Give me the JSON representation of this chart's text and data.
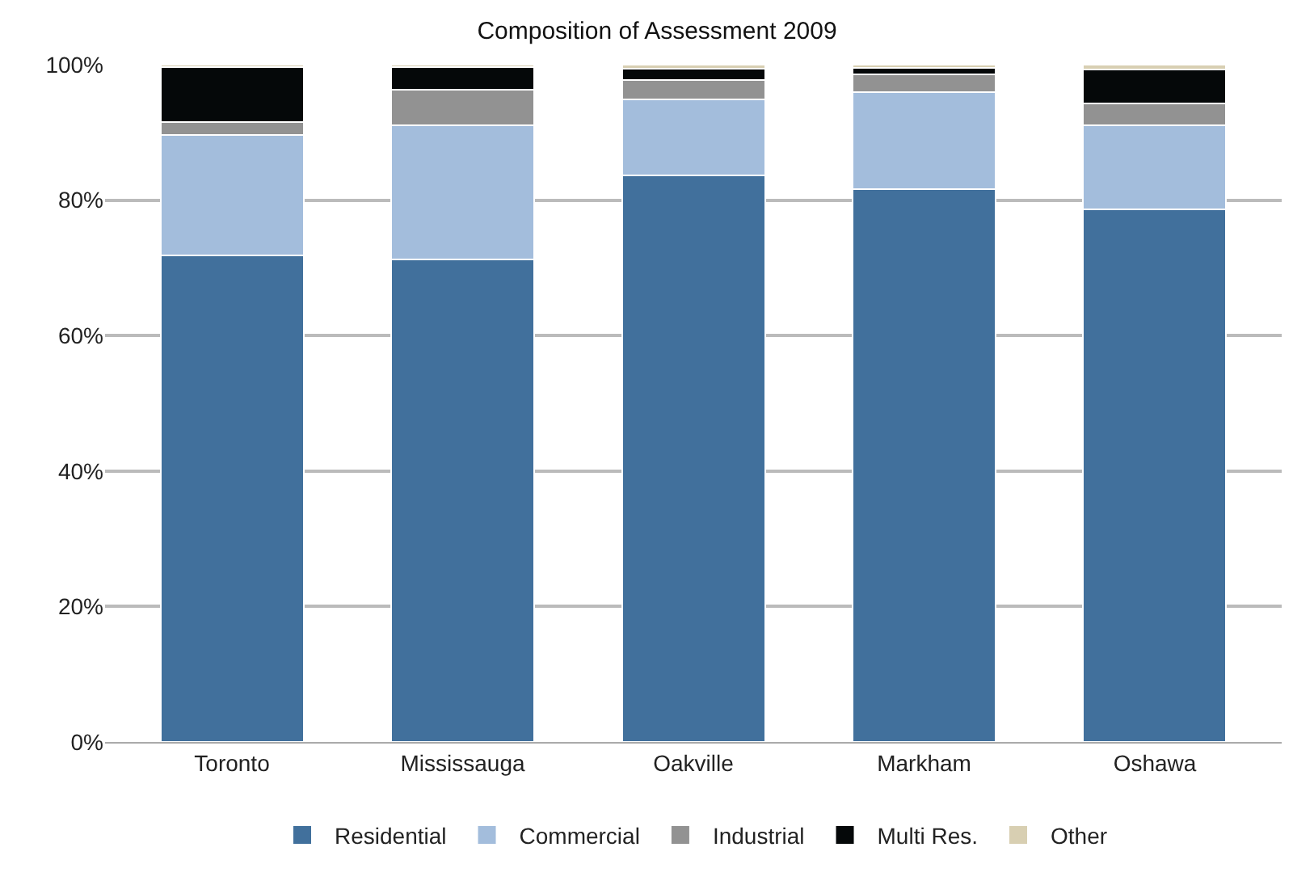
{
  "chart_data": {
    "type": "bar",
    "title": "Composition of Assessment 2009",
    "categories": [
      "Toronto",
      "Mississauga",
      "Oakville",
      "Markham",
      "Oshawa"
    ],
    "stacked": true,
    "series": [
      {
        "name": "Residential",
        "color": "#41709c",
        "values": [
          71.8,
          71.2,
          83.6,
          81.6,
          78.7
        ]
      },
      {
        "name": "Commercial",
        "color": "#a3bddc",
        "values": [
          17.8,
          19.9,
          11.3,
          14.4,
          12.4
        ]
      },
      {
        "name": "Industrial",
        "color": "#929292",
        "values": [
          1.9,
          5.2,
          2.8,
          2.6,
          3.2
        ]
      },
      {
        "name": "Multi Res.",
        "color": "#050809",
        "values": [
          8.2,
          3.4,
          1.7,
          0.9,
          5.0
        ]
      },
      {
        "name": "Other",
        "color": "#d8cfb2",
        "values": [
          0.3,
          0.3,
          0.6,
          0.5,
          0.7
        ]
      }
    ],
    "ylim": [
      0,
      100
    ],
    "yticks": [
      {
        "value": 0,
        "label": "0%"
      },
      {
        "value": 20,
        "label": "20%"
      },
      {
        "value": 40,
        "label": "40%"
      },
      {
        "value": 60,
        "label": "60%"
      },
      {
        "value": 80,
        "label": "80%"
      },
      {
        "value": 100,
        "label": "100%"
      }
    ],
    "grid": "y",
    "legend": "bottom"
  }
}
